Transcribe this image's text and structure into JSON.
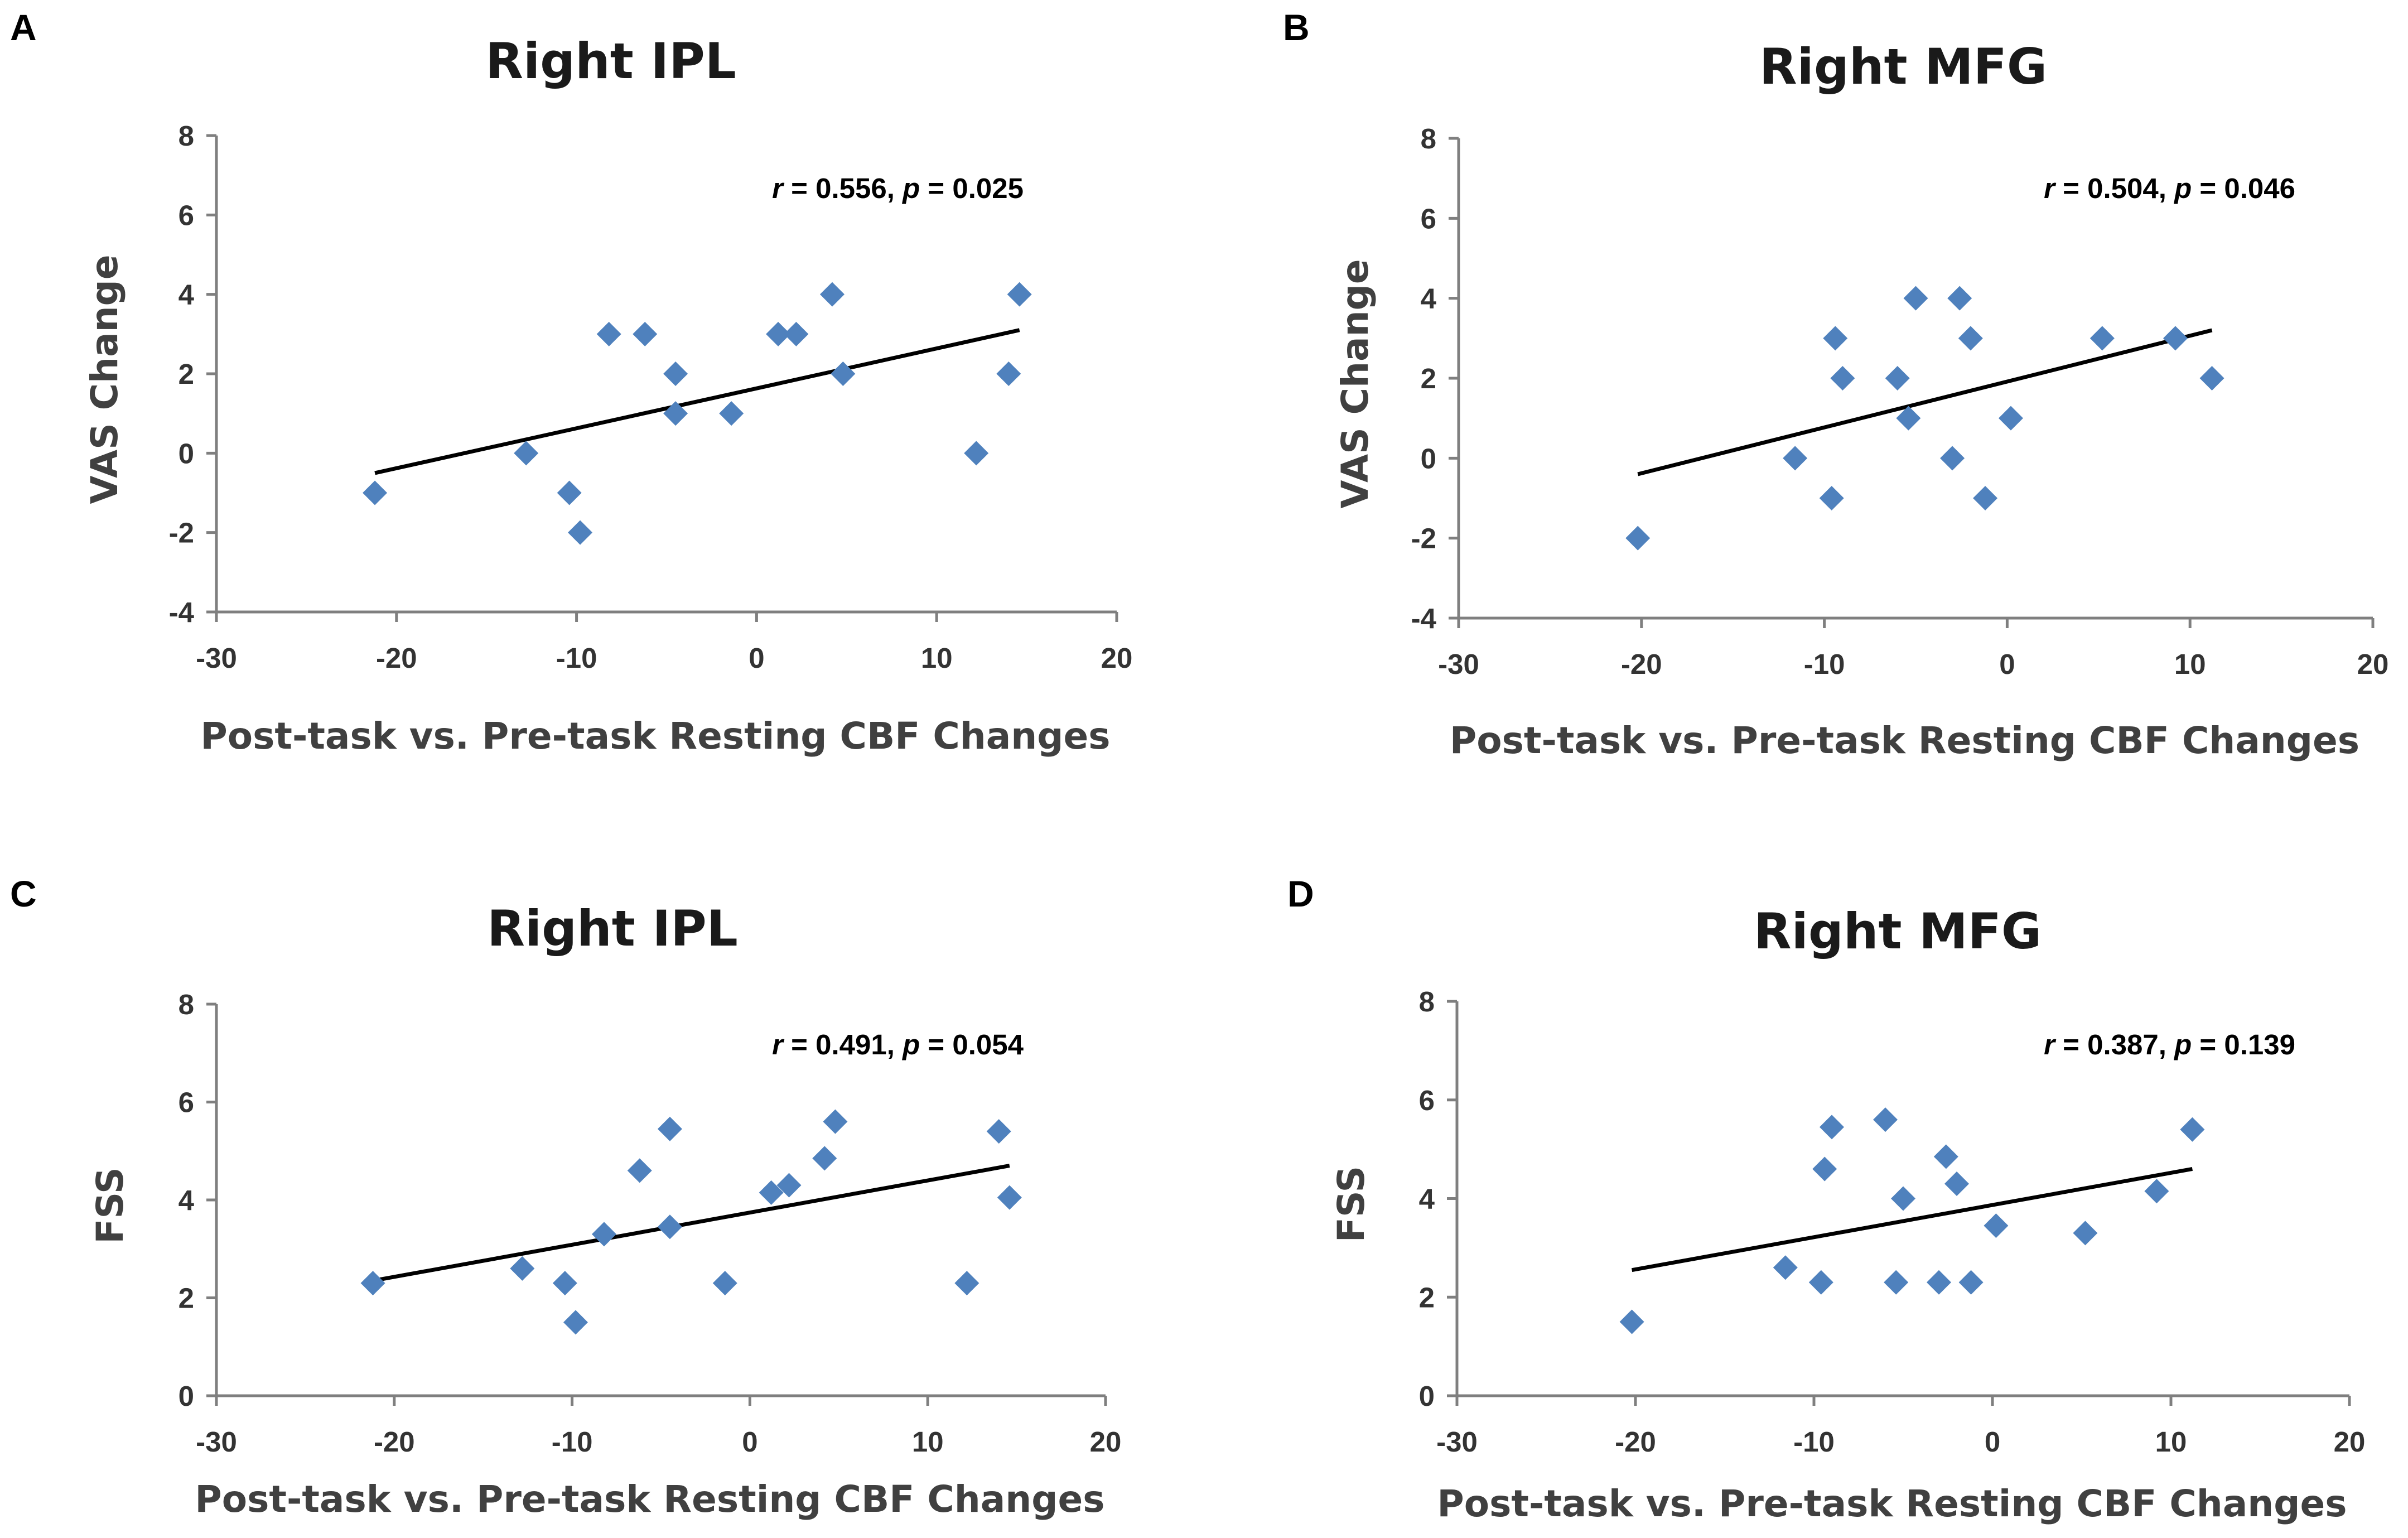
{
  "chart_data": [
    {
      "panel": "A",
      "type": "scatter",
      "title": "Right IPL",
      "xlabel": "Post-task vs. Pre-task Resting CBF Changes",
      "ylabel": "VAS Change",
      "xlim": [
        -30,
        20
      ],
      "ylim": [
        -4,
        8
      ],
      "xticks": [
        -30,
        -20,
        -10,
        0,
        10,
        20
      ],
      "yticks": [
        -4,
        -2,
        0,
        2,
        4,
        6,
        8
      ],
      "stat": {
        "r_symbol": "r",
        "r_value": "0.556",
        "p_symbol": "p",
        "p_value": "0.025"
      },
      "trendline": {
        "x": [
          -21.2,
          14.6
        ],
        "y": [
          -0.5,
          3.1
        ]
      },
      "marker_color": "#4f81bd",
      "points": [
        {
          "x": -21.2,
          "y": -1
        },
        {
          "x": -12.8,
          "y": 0
        },
        {
          "x": -10.4,
          "y": -1
        },
        {
          "x": -9.8,
          "y": -2
        },
        {
          "x": -8.2,
          "y": 3
        },
        {
          "x": -6.2,
          "y": 3
        },
        {
          "x": -4.5,
          "y": 2
        },
        {
          "x": -4.5,
          "y": 1
        },
        {
          "x": -1.4,
          "y": 1
        },
        {
          "x": 1.2,
          "y": 3
        },
        {
          "x": 2.2,
          "y": 3
        },
        {
          "x": 4.2,
          "y": 4
        },
        {
          "x": 4.8,
          "y": 2
        },
        {
          "x": 12.2,
          "y": 0
        },
        {
          "x": 14.0,
          "y": 2
        },
        {
          "x": 14.6,
          "y": 4
        }
      ]
    },
    {
      "panel": "B",
      "type": "scatter",
      "title": "Right MFG",
      "xlabel": "Post-task vs. Pre-task Resting CBF Changes",
      "ylabel": "VAS Change",
      "xlim": [
        -30,
        20
      ],
      "ylim": [
        -4,
        8
      ],
      "xticks": [
        -30,
        -20,
        -10,
        0,
        10,
        20
      ],
      "yticks": [
        -4,
        -2,
        0,
        2,
        4,
        6,
        8
      ],
      "stat": {
        "r_symbol": "r",
        "r_value": "0.504",
        "p_symbol": "p",
        "p_value": "0.046"
      },
      "trendline": {
        "x": [
          -20.2,
          11.2
        ],
        "y": [
          -0.4,
          3.2
        ]
      },
      "marker_color": "#4f81bd",
      "points": [
        {
          "x": -20.2,
          "y": -2
        },
        {
          "x": -11.6,
          "y": 0
        },
        {
          "x": -9.6,
          "y": -1
        },
        {
          "x": -9.4,
          "y": 3
        },
        {
          "x": -9.0,
          "y": 2
        },
        {
          "x": -6.0,
          "y": 2
        },
        {
          "x": -5.4,
          "y": 1
        },
        {
          "x": -5.0,
          "y": 4
        },
        {
          "x": -3.0,
          "y": 0
        },
        {
          "x": -2.6,
          "y": 4
        },
        {
          "x": -2.0,
          "y": 3
        },
        {
          "x": -1.2,
          "y": -1
        },
        {
          "x": 0.2,
          "y": 1
        },
        {
          "x": 5.2,
          "y": 3
        },
        {
          "x": 9.2,
          "y": 3
        },
        {
          "x": 11.2,
          "y": 2
        }
      ]
    },
    {
      "panel": "C",
      "type": "scatter",
      "title": "Right IPL",
      "xlabel": "Post-task vs. Pre-task Resting CBF Changes",
      "ylabel": "FSS",
      "xlim": [
        -30,
        20
      ],
      "ylim": [
        0,
        8
      ],
      "xticks": [
        -30,
        -20,
        -10,
        0,
        10,
        20
      ],
      "yticks": [
        0,
        2,
        4,
        6,
        8
      ],
      "stat": {
        "r_symbol": "r",
        "r_value": "0.491",
        "p_symbol": "p",
        "p_value": "0.054"
      },
      "trendline": {
        "x": [
          -21.2,
          14.6
        ],
        "y": [
          2.35,
          4.7
        ]
      },
      "marker_color": "#4f81bd",
      "points": [
        {
          "x": -21.2,
          "y": 2.3
        },
        {
          "x": -12.8,
          "y": 2.6
        },
        {
          "x": -10.4,
          "y": 2.3
        },
        {
          "x": -9.8,
          "y": 1.5
        },
        {
          "x": -8.2,
          "y": 3.3
        },
        {
          "x": -6.2,
          "y": 4.6
        },
        {
          "x": -4.5,
          "y": 5.45
        },
        {
          "x": -4.5,
          "y": 3.45
        },
        {
          "x": -1.4,
          "y": 2.3
        },
        {
          "x": 1.2,
          "y": 4.15
        },
        {
          "x": 2.2,
          "y": 4.3
        },
        {
          "x": 4.2,
          "y": 4.85
        },
        {
          "x": 4.8,
          "y": 5.6
        },
        {
          "x": 12.2,
          "y": 2.3
        },
        {
          "x": 14.0,
          "y": 5.4
        },
        {
          "x": 14.6,
          "y": 4.05
        }
      ]
    },
    {
      "panel": "D",
      "type": "scatter",
      "title": "Right MFG",
      "xlabel": "Post-task vs. Pre-task Resting CBF Changes",
      "ylabel": "FSS",
      "xlim": [
        -30,
        20
      ],
      "ylim": [
        0,
        8
      ],
      "xticks": [
        -30,
        -20,
        -10,
        0,
        10,
        20
      ],
      "yticks": [
        0,
        2,
        4,
        6,
        8
      ],
      "stat": {
        "r_symbol": "r",
        "r_value": "0.387",
        "p_symbol": "p",
        "p_value": "0.139"
      },
      "trendline": {
        "x": [
          -20.2,
          11.2
        ],
        "y": [
          2.55,
          4.6
        ]
      },
      "marker_color": "#4f81bd",
      "points": [
        {
          "x": -20.2,
          "y": 1.5
        },
        {
          "x": -11.6,
          "y": 2.6
        },
        {
          "x": -9.6,
          "y": 2.3
        },
        {
          "x": -9.4,
          "y": 4.6
        },
        {
          "x": -9.0,
          "y": 5.45
        },
        {
          "x": -6.0,
          "y": 5.6
        },
        {
          "x": -5.4,
          "y": 2.3
        },
        {
          "x": -5.0,
          "y": 4.0
        },
        {
          "x": -3.0,
          "y": 2.3
        },
        {
          "x": -2.6,
          "y": 4.85
        },
        {
          "x": -2.0,
          "y": 4.3
        },
        {
          "x": -1.2,
          "y": 2.3
        },
        {
          "x": 0.2,
          "y": 3.45
        },
        {
          "x": 5.2,
          "y": 3.3
        },
        {
          "x": 9.2,
          "y": 4.15
        },
        {
          "x": 11.2,
          "y": 5.4
        }
      ]
    }
  ]
}
